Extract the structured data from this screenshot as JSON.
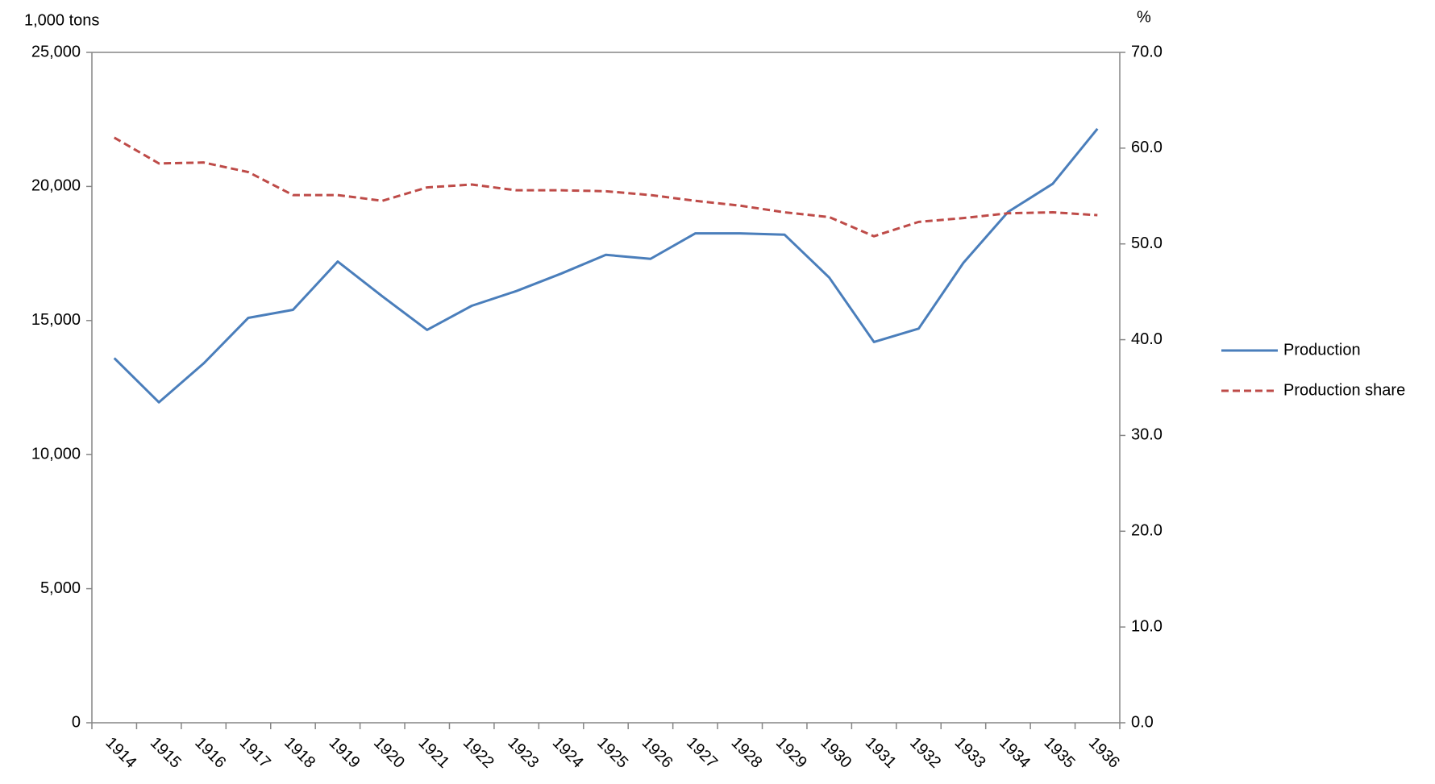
{
  "chart_data": {
    "type": "line",
    "y_label": "1,000 tons",
    "y2_label": "%",
    "categories": [
      "1914",
      "1915",
      "1916",
      "1917",
      "1918",
      "1919",
      "1920",
      "1921",
      "1922",
      "1923",
      "1924",
      "1925",
      "1926",
      "1927",
      "1928",
      "1929",
      "1930",
      "1931",
      "1932",
      "1933",
      "1934",
      "1935",
      "1936"
    ],
    "series": [
      {
        "name": "Production",
        "color": "#4a7ebb",
        "dash": false,
        "values": [
          13600,
          11950,
          13400,
          15100,
          15400,
          17200,
          15900,
          14650,
          15550,
          16100,
          16750,
          17450,
          17300,
          18250,
          18250,
          18200,
          16600,
          14200,
          14700,
          17150,
          19050,
          20100,
          22150
        ]
      },
      {
        "name": "Production share",
        "color": "#be4b48",
        "dash": true,
        "axis": "y2",
        "values": [
          61.1,
          58.4,
          58.5,
          57.5,
          55.1,
          55.1,
          54.5,
          55.9,
          56.2,
          55.6,
          55.6,
          55.5,
          55.1,
          54.5,
          54.0,
          53.3,
          52.8,
          50.8,
          52.3,
          52.7,
          53.2,
          53.3,
          53.0
        ]
      }
    ],
    "ylim": [
      0,
      25000
    ],
    "yticks": [
      0,
      {
        "value": 5000,
        "label": "5,000"
      },
      {
        "value": 10000,
        "label": "10,000"
      },
      {
        "value": 15000,
        "label": "15,000"
      },
      {
        "value": 20000,
        "label": "20,000"
      },
      {
        "value": 25000,
        "label": "25,000"
      }
    ],
    "y2lim": [
      0,
      70
    ],
    "y2ticks": [
      {
        "value": 0,
        "label": "0.0"
      },
      {
        "value": 10,
        "label": "10.0"
      },
      {
        "value": 20,
        "label": "20.0"
      },
      {
        "value": 30,
        "label": "30.0"
      },
      {
        "value": 40,
        "label": "40.0"
      },
      {
        "value": 50,
        "label": "50.0"
      },
      {
        "value": 60,
        "label": "60.0"
      },
      {
        "value": 70,
        "label": "70.0"
      }
    ],
    "grid": false,
    "legend": "right"
  }
}
